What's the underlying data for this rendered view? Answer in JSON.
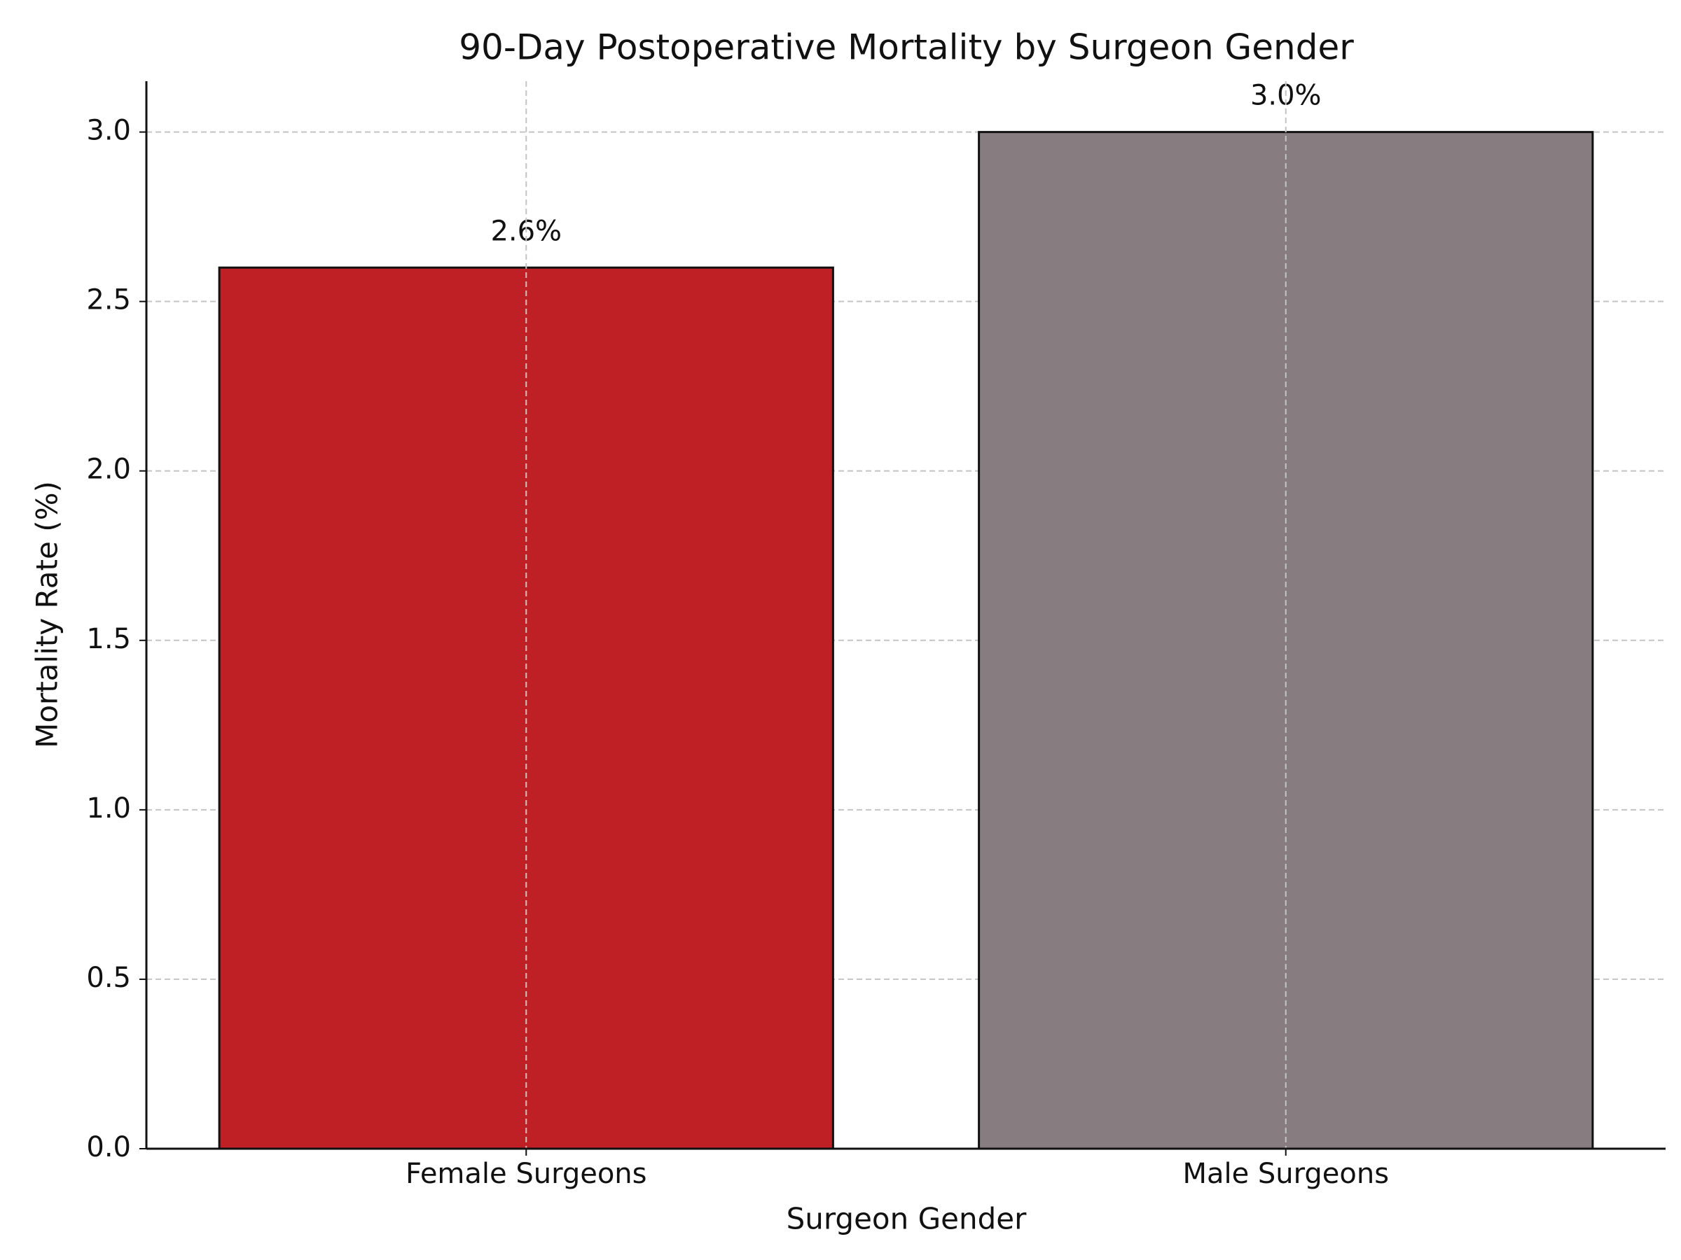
{
  "chart_data": {
    "type": "bar",
    "title": "90-Day Postoperative Mortality by Surgeon Gender",
    "x_label": "Surgeon Gender",
    "y_label": "Mortality Rate (%)",
    "categories": [
      "Female Surgeons",
      "Male Surgeons"
    ],
    "values": [
      2.6,
      3.0
    ],
    "value_labels": [
      "2.6%",
      "3.0%"
    ],
    "colors": [
      "#be2026",
      "#877c7f"
    ],
    "ylim": [
      0,
      3.15
    ],
    "yticks": [
      {
        "value": 0,
        "label": "0.0"
      },
      0.5,
      {
        "value": 1,
        "label": "1.0"
      },
      1.5,
      {
        "value": 2,
        "label": "2.0"
      },
      2.5,
      {
        "value": 3,
        "label": "3.0"
      }
    ],
    "grid": true
  }
}
